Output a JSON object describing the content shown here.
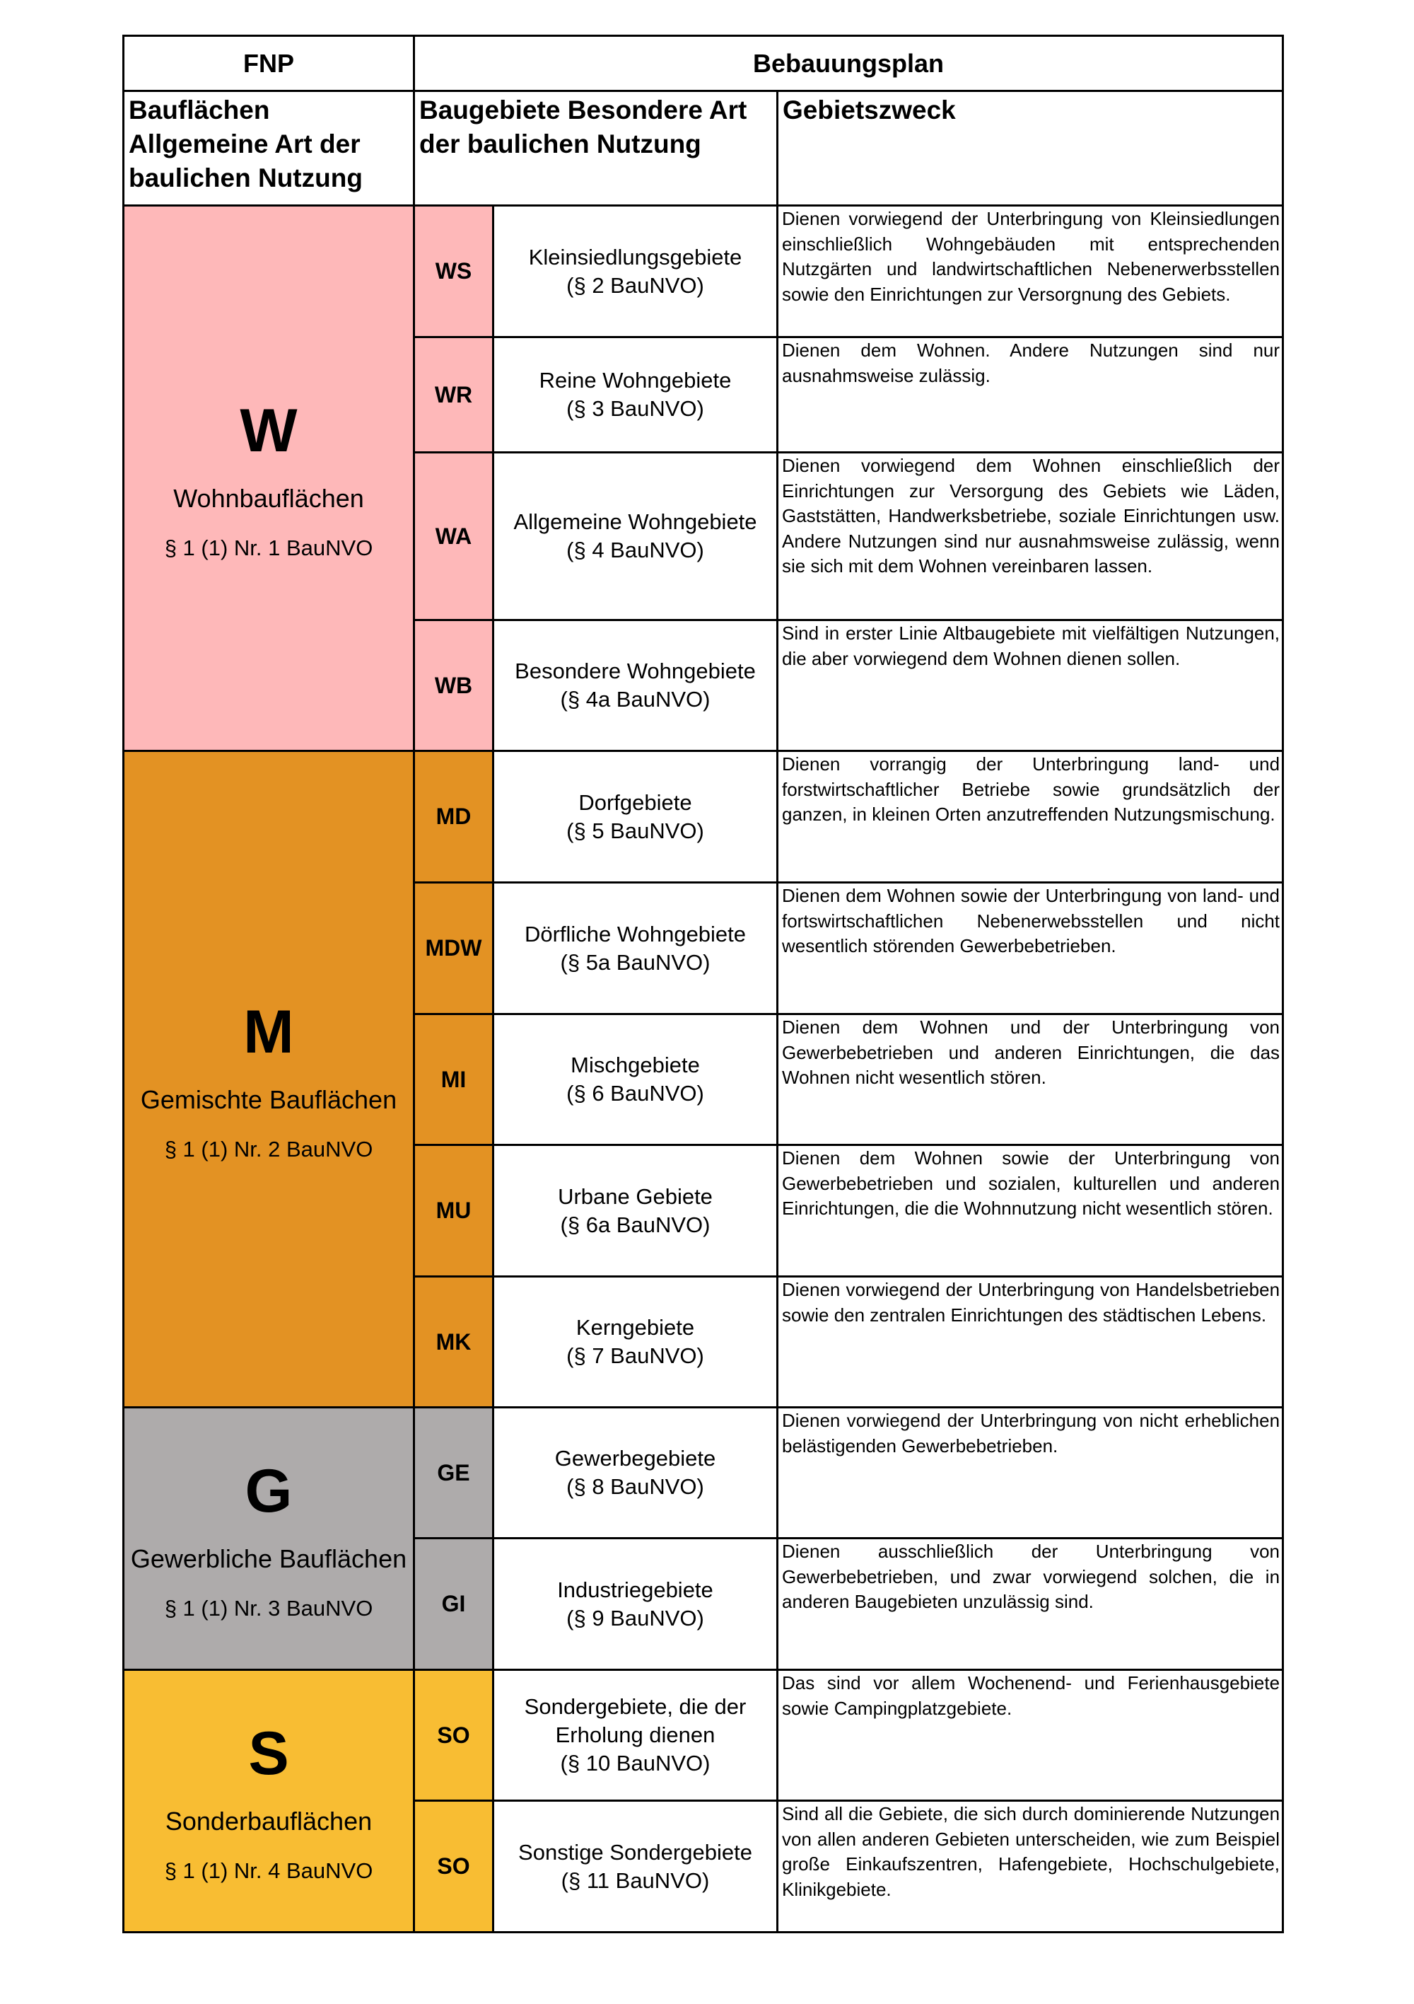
{
  "header": {
    "fnp": "FNP",
    "bplan": "Bebauungsplan"
  },
  "subheader": {
    "col1": "Bauflächen Allgemeine Art der baulichen Nutzung",
    "col2": "Baugebiete Besondere Art der baulichen Nutzung",
    "col3": "Gebietszweck"
  },
  "groups": [
    {
      "letter": "W",
      "name": "Wohnbauflächen",
      "ref": "§ 1 (1) Nr. 1 BauNVO",
      "color": "#feb8b9",
      "rows": [
        {
          "code": "WS",
          "name": "Kleinsiedlungsgebiete",
          "ref": "(§ 2 BauNVO)",
          "desc": "Dienen vorwiegend der Unterbringung von Kleinsiedlungen einschließlich Wohngebäuden mit entsprechenden Nutzgärten und landwirtschaftlichen Nebenerwerbsstellen sowie den Einrichtungen zur Versorgnung des Gebiets."
        },
        {
          "code": "WR",
          "name": "Reine Wohngebiete",
          "ref": "(§ 3 BauNVO)",
          "desc": "Dienen dem Wohnen. Andere Nutzungen sind nur ausnahmsweise zulässig."
        },
        {
          "code": "WA",
          "name": "Allgemeine Wohngebiete",
          "ref": "(§ 4 BauNVO)",
          "desc": "Dienen vorwiegend dem Wohnen einschließlich der Einrichtungen zur Versorgung des Gebiets wie Läden, Gaststätten, Handwerksbetriebe, soziale Einrichtungen usw. Andere Nutzungen sind nur ausnahmsweise zulässig, wenn sie sich mit dem Wohnen vereinbaren lassen."
        },
        {
          "code": "WB",
          "name": "Besondere Wohngebiete",
          "ref": "(§ 4a BauNVO)",
          "desc": "Sind in erster Linie Altbaugebiete mit vielfältigen Nutzungen, die aber vorwiegend dem Wohnen dienen sollen."
        }
      ]
    },
    {
      "letter": "M",
      "name": "Gemischte Bauflächen",
      "ref": "§ 1 (1) Nr. 2 BauNVO",
      "color": "#e39223",
      "rows": [
        {
          "code": "MD",
          "name": "Dorfgebiete",
          "ref": "(§ 5 BauNVO)",
          "desc": "Dienen vorrangig der Unterbringung land- und forstwirtschaftlicher Betriebe sowie grundsätzlich der ganzen, in kleinen Orten anzutreffenden Nutzungsmischung."
        },
        {
          "code": "MDW",
          "name": "Dörfliche Wohngebiete",
          "ref": "(§ 5a BauNVO)",
          "desc": "Dienen dem Wohnen sowie der Unterbringung von land- und fortswirtschaftlichen Nebenerwebsstellen und nicht wesentlich störenden Gewerbebetrieben."
        },
        {
          "code": "MI",
          "name": "Mischgebiete",
          "ref": "(§ 6 BauNVO)",
          "desc": "Dienen dem Wohnen und der Unterbringung von Gewerbebetrieben und anderen Einrichtungen, die das Wohnen nicht wesentlich stören."
        },
        {
          "code": "MU",
          "name": "Urbane Gebiete",
          "ref": "(§ 6a BauNVO)",
          "desc": "Dienen dem Wohnen sowie der Unterbringung von Gewerbebetrieben und sozialen, kulturellen und anderen Einrichtungen, die die Wohnnutzung nicht wesentlich stören."
        },
        {
          "code": "MK",
          "name": "Kerngebiete",
          "ref": "(§ 7 BauNVO)",
          "desc": "Dienen vorwiegend der Unterbringung von Handelsbetrieben sowie den zentralen Einrichtungen des städtischen Lebens."
        }
      ]
    },
    {
      "letter": "G",
      "name": "Gewerbliche Bauflächen",
      "ref": "§ 1 (1) Nr. 3 BauNVO",
      "color": "#aeabab",
      "rows": [
        {
          "code": "GE",
          "name": "Gewerbegebiete",
          "ref": "(§ 8 BauNVO)",
          "desc": "Dienen vorwiegend der Unterbringung von nicht erheblichen belästigenden Gewerbebetrieben."
        },
        {
          "code": "GI",
          "name": "Industriegebiete",
          "ref": "(§ 9 BauNVO)",
          "desc": "Dienen ausschließlich der Unterbringung von Gewerbebetrieben, und zwar vorwiegend solchen, die in anderen Baugebieten unzulässig sind."
        }
      ]
    },
    {
      "letter": "S",
      "name": "Sonderbauflächen",
      "ref": "§ 1 (1) Nr. 4 BauNVO",
      "color": "#f8bd33",
      "rows": [
        {
          "code": "SO",
          "name": "Sondergebiete, die der Erholung dienen",
          "ref": "(§ 10 BauNVO)",
          "desc": "Das sind vor allem Wochenend- und Ferienhausgebiete sowie Campingplatzgebiete."
        },
        {
          "code": "SO",
          "name": "Sonstige Sondergebiete",
          "ref": "(§ 11 BauNVO)",
          "desc": "Sind all die Gebiete, die sich durch dominierende Nutzungen von allen anderen Gebieten unterscheiden, wie zum Beispiel große Einkaufszentren, Hafengebiete, Hochschulgebiete, Klinikgebiete."
        }
      ]
    }
  ]
}
